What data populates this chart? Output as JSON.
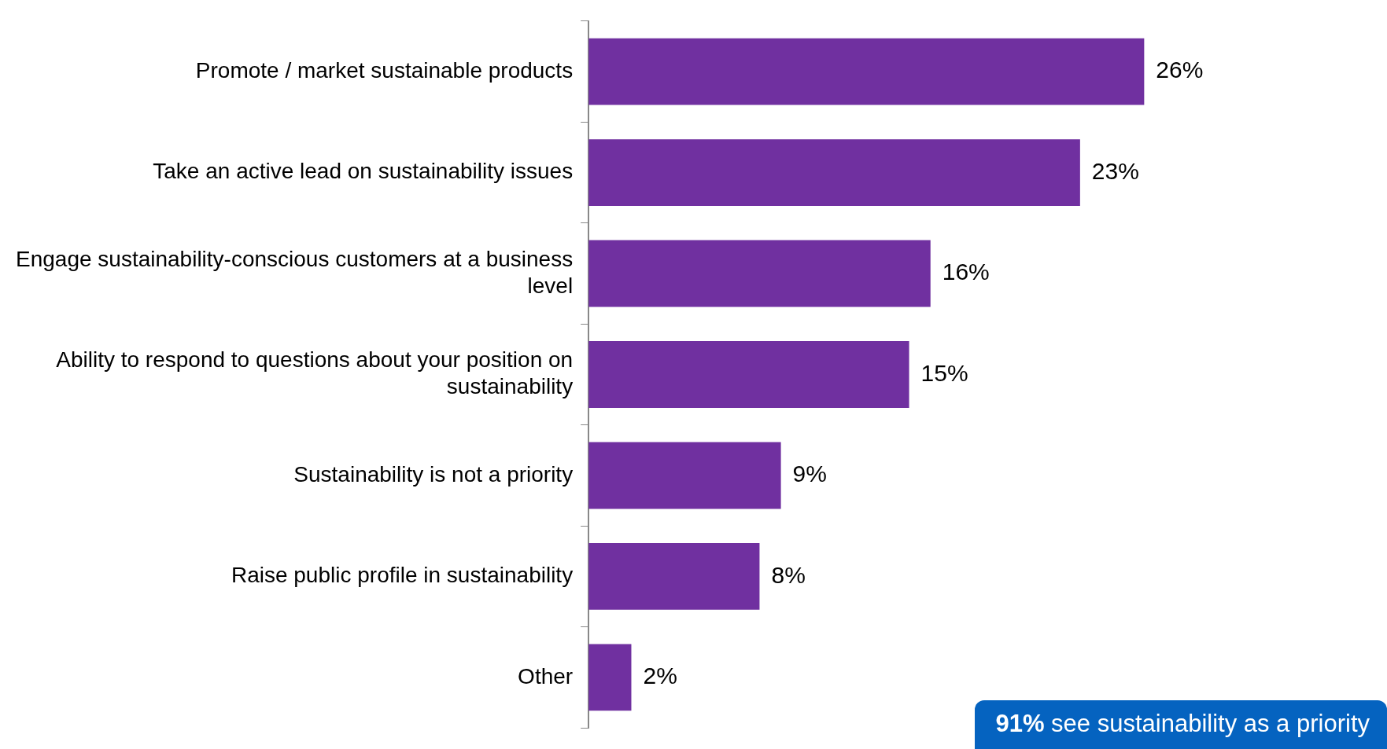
{
  "chart_data": {
    "type": "bar",
    "orientation": "horizontal",
    "categories": [
      "Promote / market sustainable products",
      "Take an active lead on sustainability issues",
      "Engage sustainability-conscious customers at a business level",
      "Ability to respond to questions about your position on sustainability",
      "Sustainability is not a priority",
      "Raise public profile in sustainability",
      "Other"
    ],
    "values": [
      26,
      23,
      16,
      15,
      9,
      8,
      2
    ],
    "value_labels": [
      "26%",
      "23%",
      "16%",
      "15%",
      "9%",
      "8%",
      "2%"
    ],
    "color": "#7030a0",
    "legend": false,
    "annotations": [
      "91% see sustainability as a priority"
    ]
  }
}
